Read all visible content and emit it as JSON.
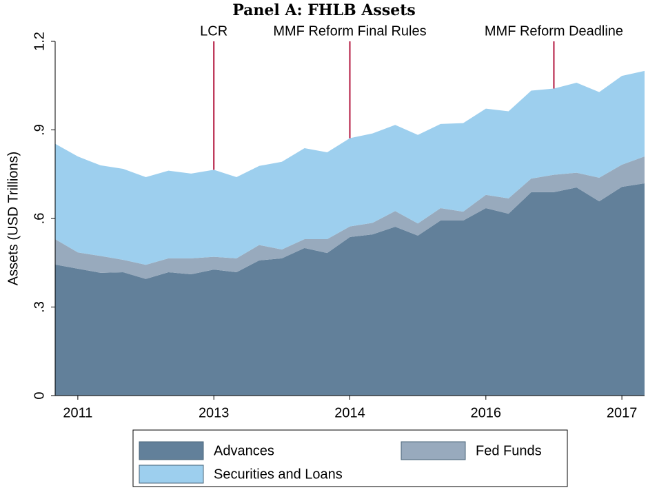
{
  "chart_data": {
    "type": "stacked_area",
    "title": "Panel A: FHLB Assets",
    "y_label": "Assets (USD Trillions)",
    "x": [
      0,
      1,
      2,
      3,
      4,
      5,
      6,
      7,
      8,
      9,
      10,
      11,
      12,
      13,
      14,
      15,
      16,
      17,
      18,
      19,
      20,
      21,
      22,
      23,
      24,
      25,
      26
    ],
    "xlim": [
      0,
      26
    ],
    "xticks": [
      {
        "value": 1,
        "label": "2011"
      },
      {
        "value": 7,
        "label": "2013"
      },
      {
        "value": 13,
        "label": "2014"
      },
      {
        "value": 19,
        "label": "2016"
      },
      {
        "value": 25,
        "label": "2017"
      }
    ],
    "ylim": [
      0,
      1.2
    ],
    "yticks": [
      0,
      {
        "value": 0.3,
        "label": ".3"
      },
      {
        "value": 0.6,
        "label": ".6"
      },
      {
        "value": 0.9,
        "label": ".9"
      },
      1.2
    ],
    "series": [
      {
        "name": "Advances",
        "color": "#62809a",
        "values": [
          0.444,
          0.43,
          0.416,
          0.418,
          0.395,
          0.418,
          0.411,
          0.427,
          0.418,
          0.458,
          0.465,
          0.5,
          0.483,
          0.537,
          0.546,
          0.572,
          0.542,
          0.593,
          0.593,
          0.635,
          0.616,
          0.689,
          0.689,
          0.705,
          0.658,
          0.707,
          0.719
        ]
      },
      {
        "name": "Fed Funds",
        "color": "#98aabd",
        "values": [
          0.086,
          0.055,
          0.057,
          0.042,
          0.048,
          0.047,
          0.054,
          0.043,
          0.047,
          0.052,
          0.03,
          0.03,
          0.047,
          0.036,
          0.039,
          0.053,
          0.041,
          0.042,
          0.03,
          0.045,
          0.052,
          0.046,
          0.059,
          0.05,
          0.08,
          0.075,
          0.091
        ]
      },
      {
        "name": "Securities and Loans",
        "color": "#9dcfee",
        "values": [
          0.323,
          0.325,
          0.307,
          0.308,
          0.297,
          0.297,
          0.287,
          0.295,
          0.275,
          0.268,
          0.297,
          0.308,
          0.294,
          0.299,
          0.303,
          0.292,
          0.3,
          0.285,
          0.3,
          0.292,
          0.295,
          0.298,
          0.292,
          0.305,
          0.29,
          0.301,
          0.29
        ]
      }
    ],
    "annotations": [
      {
        "text": "LCR",
        "x": 7
      },
      {
        "text": "MMF Reform Final Rules",
        "x": 13
      },
      {
        "text": "MMF Reform Deadline",
        "x": 22
      }
    ],
    "annotation_color": "#b3173f"
  }
}
